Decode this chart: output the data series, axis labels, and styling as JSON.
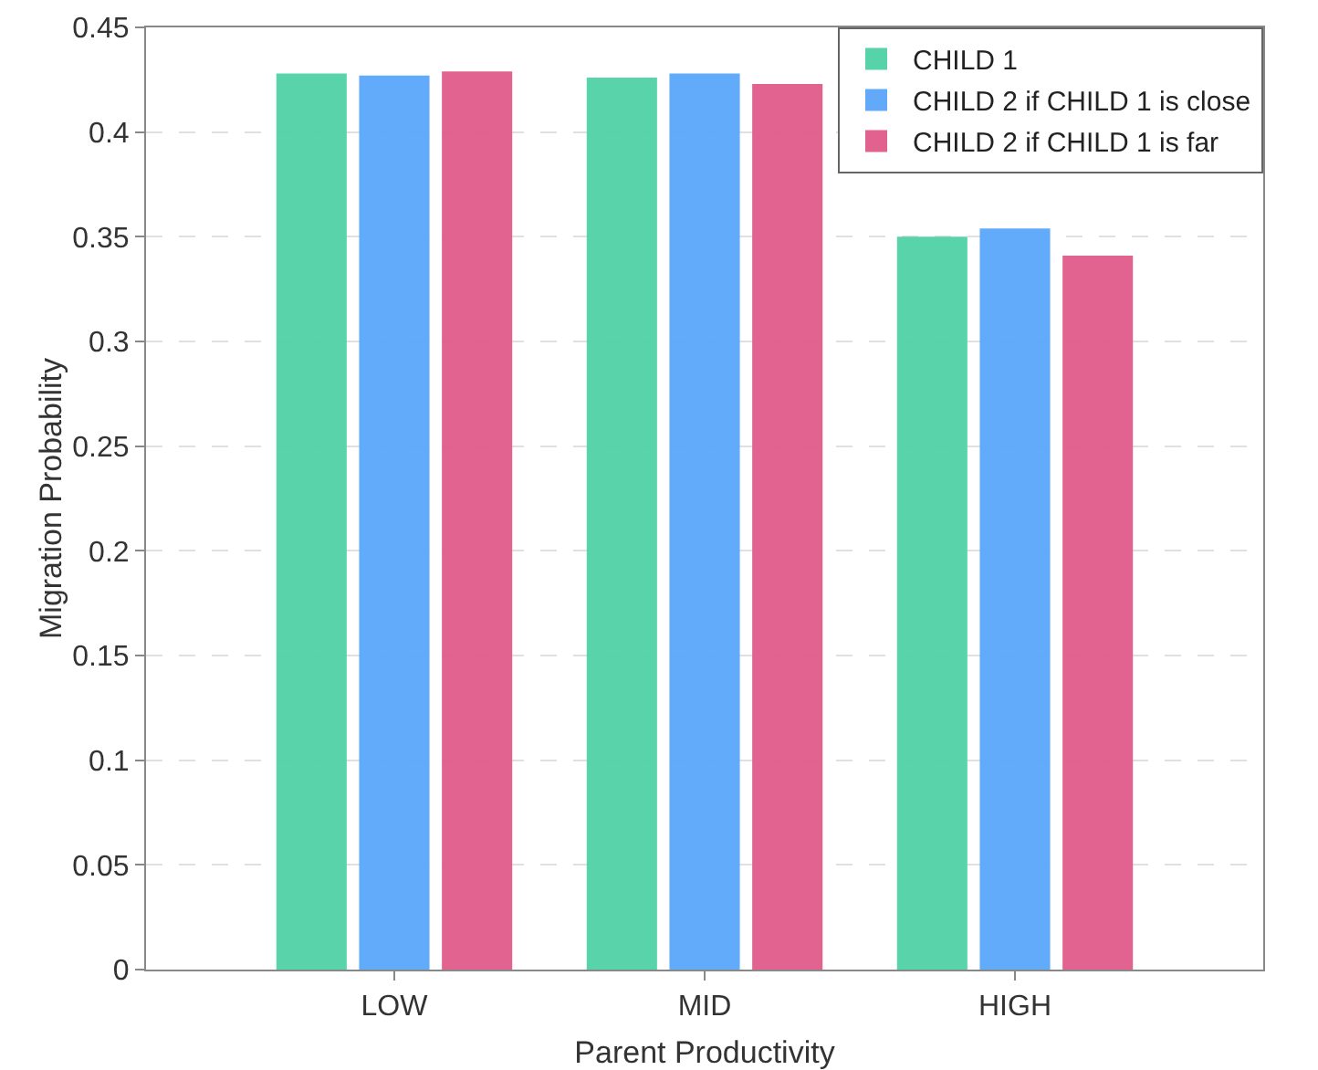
{
  "chart_data": {
    "type": "bar",
    "xlabel": "Parent Productivity",
    "ylabel": "Migration Probability",
    "categories": [
      "LOW",
      "MID",
      "HIGH"
    ],
    "series": [
      {
        "name": "CHILD 1",
        "color": "#4fd1a5",
        "values": [
          0.428,
          0.426,
          0.35
        ]
      },
      {
        "name": "CHILD 2 if CHILD 1 is close",
        "color": "#5aa5fa",
        "values": [
          0.427,
          0.428,
          0.354
        ]
      },
      {
        "name": "CHILD 2 if CHILD 1 is far",
        "color": "#e05a8a",
        "values": [
          0.429,
          0.423,
          0.341
        ]
      }
    ],
    "ylim": [
      0,
      0.45
    ],
    "yticks": [
      0,
      0.05,
      0.1,
      0.15,
      0.2,
      0.25,
      0.3,
      0.35,
      0.4,
      0.45
    ],
    "grid": "y",
    "legend": "top right"
  }
}
